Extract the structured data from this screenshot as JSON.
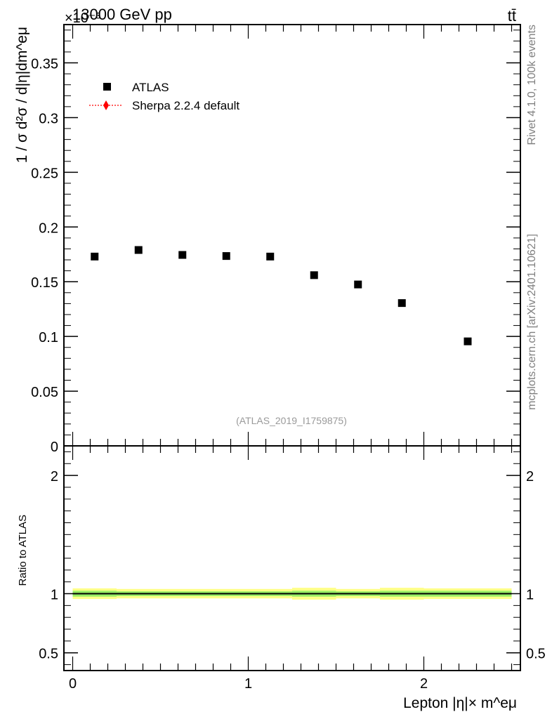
{
  "header": {
    "energy_label": "13000 GeV pp",
    "process_label": "tt̄",
    "exponent_label": "×10⁻³"
  },
  "side_text": {
    "rivet": "Rivet 4.1.0,  100k events",
    "mcplots": "mcplots.cern.ch [arXiv:2401.10621]"
  },
  "legend": {
    "items": [
      {
        "label": "ATLAS",
        "marker": "square",
        "color": "#000000"
      },
      {
        "label": "Sherpa 2.2.4 default",
        "marker": "diamond",
        "color": "#ff0000"
      }
    ]
  },
  "analysis_label": "(ATLAS_2019_I1759875)",
  "chart_data": [
    {
      "type": "scatter",
      "ylabel": "1 / σ  d²σ / d|η|dm^eμ",
      "xlim": [
        -0.05,
        2.55
      ],
      "ylim": [
        0,
        0.385
      ],
      "y_ticks": [
        0,
        0.05,
        0.1,
        0.15,
        0.2,
        0.25,
        0.3,
        0.35
      ],
      "y_tick_labels": [
        "0",
        "0.05",
        "0.1",
        "0.15",
        "0.2",
        "0.25",
        "0.3",
        "0.35"
      ],
      "series": [
        {
          "name": "ATLAS",
          "x": [
            0.125,
            0.375,
            0.625,
            0.875,
            1.125,
            1.375,
            1.625,
            1.875,
            2.25
          ],
          "y": [
            0.173,
            0.179,
            0.1745,
            0.1735,
            0.173,
            0.156,
            0.1475,
            0.1305,
            0.0955
          ]
        }
      ],
      "grid": false
    },
    {
      "type": "line",
      "ylabel": "Ratio to ATLAS",
      "xlabel": "Lepton |η|× m^eμ",
      "xlim": [
        -0.05,
        2.55
      ],
      "ylim": [
        0.35,
        2.25
      ],
      "x_ticks": [
        0,
        1,
        2
      ],
      "x_tick_labels": [
        "0",
        "1",
        "2"
      ],
      "y_ticks": [
        0.5,
        1,
        2
      ],
      "y_tick_labels": [
        "0.5",
        "1",
        "2"
      ],
      "bin_edges": [
        0,
        0.25,
        0.5,
        0.75,
        1.0,
        1.25,
        1.5,
        1.75,
        2.0,
        2.5
      ],
      "reference": 1.0,
      "band_inner": [
        0.025,
        0.02,
        0.02,
        0.02,
        0.02,
        0.025,
        0.02,
        0.025,
        0.025
      ],
      "band_outer": [
        0.045,
        0.04,
        0.04,
        0.04,
        0.04,
        0.05,
        0.04,
        0.05,
        0.045
      ],
      "band_inner_color": "#99ee66",
      "band_outer_color": "#ffff88",
      "grid": false
    }
  ]
}
